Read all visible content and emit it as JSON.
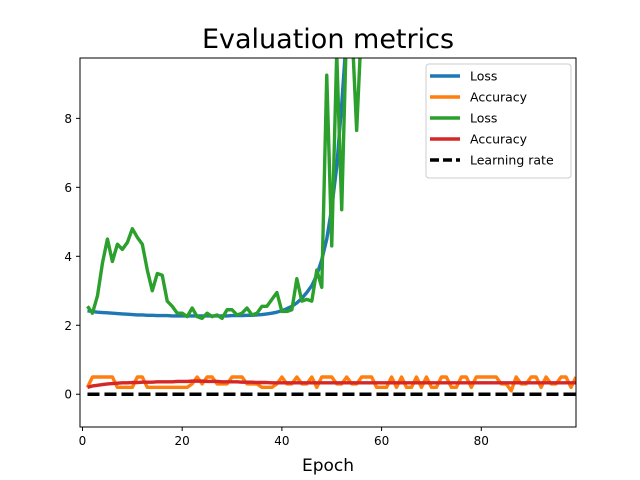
{
  "chart_data": {
    "type": "line",
    "title": "Evaluation metrics",
    "xlabel": "Epoch",
    "ylabel": "",
    "xlim": [
      -0.5,
      99
    ],
    "ylim": [
      -0.95,
      9.75
    ],
    "xticks": [
      0,
      20,
      40,
      60,
      80
    ],
    "yticks": [
      0,
      2,
      4,
      6,
      8
    ],
    "grid": false,
    "legend_position": "top-right",
    "x": [
      1,
      2,
      3,
      4,
      5,
      6,
      7,
      8,
      9,
      10,
      11,
      12,
      13,
      14,
      15,
      16,
      17,
      18,
      19,
      20,
      21,
      22,
      23,
      24,
      25,
      26,
      27,
      28,
      29,
      30,
      31,
      32,
      33,
      34,
      35,
      36,
      37,
      38,
      39,
      40,
      41,
      42,
      43,
      44,
      45,
      46,
      47,
      48,
      49,
      50,
      51,
      52,
      53,
      54,
      55,
      56,
      57,
      58,
      59,
      60,
      61,
      62,
      63,
      64,
      65,
      66,
      67,
      68,
      69,
      70,
      71,
      72,
      73,
      74,
      75,
      76,
      77,
      78,
      79,
      80,
      81,
      82,
      83,
      84,
      85,
      86,
      87,
      88,
      89,
      90,
      91,
      92,
      93,
      94,
      95,
      96,
      97,
      98,
      99
    ],
    "series": [
      {
        "name": "Loss",
        "color": "#1f77b4",
        "dashed": false,
        "values": [
          2.42,
          2.4,
          2.38,
          2.37,
          2.36,
          2.35,
          2.34,
          2.33,
          2.32,
          2.31,
          2.3,
          2.3,
          2.29,
          2.29,
          2.28,
          2.28,
          2.28,
          2.27,
          2.27,
          2.27,
          2.27,
          2.27,
          2.27,
          2.27,
          2.27,
          2.27,
          2.27,
          2.27,
          2.27,
          2.28,
          2.28,
          2.28,
          2.29,
          2.29,
          2.3,
          2.31,
          2.33,
          2.35,
          2.38,
          2.42,
          2.48,
          2.55,
          2.65,
          2.78,
          2.95,
          3.15,
          3.45,
          3.9,
          4.5,
          5.4,
          6.6,
          8.4,
          10.5,
          null,
          null,
          null,
          null,
          null,
          null,
          null,
          null,
          null,
          null,
          null,
          null,
          null,
          null,
          null,
          null,
          null,
          null,
          null,
          null,
          null,
          null,
          null,
          null,
          null,
          null,
          null,
          null,
          null,
          null,
          null,
          null,
          null,
          null,
          null,
          null,
          null,
          null,
          null,
          null,
          null,
          null,
          null,
          null,
          null,
          null
        ]
      },
      {
        "name": "Accuracy",
        "color": "#ff7f0e",
        "dashed": false,
        "values": [
          0.2,
          0.5,
          0.5,
          0.5,
          0.5,
          0.5,
          0.2,
          0.2,
          0.2,
          0.2,
          0.5,
          0.5,
          0.2,
          0.2,
          0.2,
          0.2,
          0.2,
          0.2,
          0.2,
          0.2,
          0.2,
          0.3,
          0.5,
          0.3,
          0.5,
          0.5,
          0.3,
          0.3,
          0.3,
          0.5,
          0.5,
          0.5,
          0.3,
          0.3,
          0.3,
          0.2,
          0.2,
          0.2,
          0.3,
          0.5,
          0.3,
          0.3,
          0.5,
          0.3,
          0.3,
          0.5,
          0.2,
          0.5,
          0.5,
          0.5,
          0.3,
          0.3,
          0.5,
          0.3,
          0.3,
          0.5,
          0.5,
          0.5,
          0.2,
          0.2,
          0.2,
          0.5,
          0.2,
          0.5,
          0.2,
          0.2,
          0.5,
          0.2,
          0.5,
          0.2,
          0.2,
          0.5,
          0.5,
          0.2,
          0.2,
          0.5,
          0.5,
          0.2,
          0.5,
          0.5,
          0.5,
          0.5,
          0.5,
          0.3,
          0.3,
          0.1,
          0.5,
          0.3,
          0.3,
          0.5,
          0.5,
          0.2,
          0.5,
          0.3,
          0.3,
          0.5,
          0.5,
          0.2,
          0.5
        ]
      },
      {
        "name": "Loss",
        "color": "#2ca02c",
        "dashed": false,
        "values": [
          2.55,
          2.35,
          2.85,
          3.8,
          4.5,
          3.85,
          4.35,
          4.2,
          4.4,
          4.8,
          4.55,
          4.35,
          3.6,
          3.0,
          3.5,
          3.45,
          2.7,
          2.55,
          2.35,
          2.35,
          2.25,
          2.5,
          2.25,
          2.2,
          2.35,
          2.25,
          2.3,
          2.2,
          2.45,
          2.45,
          2.3,
          2.35,
          2.5,
          2.3,
          2.35,
          2.55,
          2.55,
          2.75,
          2.95,
          2.4,
          2.4,
          2.45,
          3.35,
          2.7,
          2.75,
          2.7,
          3.6,
          3.1,
          9.25,
          4.3,
          9.9,
          5.35,
          10.8,
          10.8,
          7.65,
          10.8,
          null,
          null,
          null,
          null,
          null,
          null,
          null,
          null,
          null,
          null,
          null,
          null,
          null,
          null,
          null,
          null,
          null,
          null,
          null,
          null,
          null,
          null,
          null,
          null,
          null,
          null,
          null,
          null,
          null,
          null,
          null,
          null,
          null,
          null,
          null,
          null,
          null,
          null,
          null,
          null,
          null,
          null,
          null
        ]
      },
      {
        "name": "Accuracy",
        "color": "#d62728",
        "dashed": false,
        "values": [
          0.2,
          0.24,
          0.26,
          0.28,
          0.3,
          0.31,
          0.32,
          0.33,
          0.33,
          0.34,
          0.34,
          0.35,
          0.35,
          0.35,
          0.36,
          0.36,
          0.36,
          0.36,
          0.37,
          0.37,
          0.37,
          0.38,
          0.38,
          0.38,
          0.37,
          0.37,
          0.37,
          0.36,
          0.36,
          0.36,
          0.36,
          0.35,
          0.35,
          0.35,
          0.34,
          0.34,
          0.34,
          0.33,
          0.33,
          0.33,
          0.33,
          0.33,
          0.33,
          0.33,
          0.33,
          0.33,
          0.33,
          0.33,
          0.33,
          0.33,
          0.33,
          0.33,
          0.33,
          0.33,
          0.33,
          0.33,
          0.33,
          0.33,
          0.33,
          0.33,
          0.33,
          0.33,
          0.33,
          0.33,
          0.33,
          0.33,
          0.33,
          0.33,
          0.33,
          0.33,
          0.33,
          0.33,
          0.33,
          0.33,
          0.33,
          0.33,
          0.33,
          0.33,
          0.33,
          0.33,
          0.33,
          0.33,
          0.33,
          0.33,
          0.33,
          0.33,
          0.33,
          0.33,
          0.33,
          0.33,
          0.33,
          0.33,
          0.33,
          0.33,
          0.33,
          0.33,
          0.33,
          0.33,
          0.33
        ]
      },
      {
        "name": "Learning rate",
        "color": "#000000",
        "dashed": true,
        "values": [
          0,
          0,
          0,
          0,
          0,
          0,
          0,
          0,
          0,
          0,
          0,
          0,
          0,
          0,
          0,
          0,
          0,
          0,
          0,
          0,
          0,
          0,
          0,
          0,
          0,
          0,
          0,
          0,
          0,
          0,
          0,
          0,
          0,
          0,
          0,
          0,
          0,
          0,
          0,
          0,
          0,
          0,
          0,
          0,
          0,
          0,
          0,
          0,
          0,
          0,
          0,
          0,
          0,
          0,
          0,
          0,
          0,
          0,
          0,
          0,
          0,
          0,
          0,
          0,
          0,
          0,
          0,
          0,
          0,
          0,
          0,
          0,
          0,
          0,
          0,
          0,
          0,
          0,
          0,
          0,
          0,
          0,
          0,
          0,
          0,
          0,
          0,
          0,
          0,
          0,
          0,
          0,
          0,
          0,
          0,
          0,
          0,
          0,
          0
        ]
      }
    ]
  }
}
